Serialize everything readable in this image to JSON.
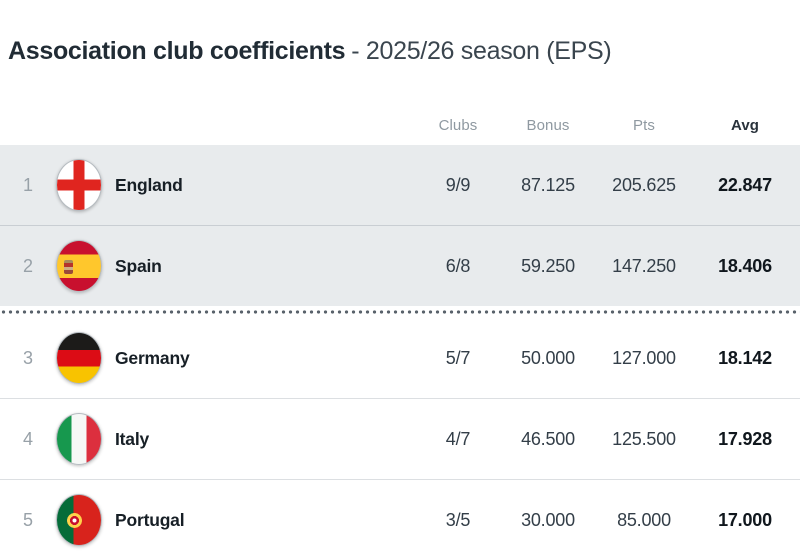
{
  "title": {
    "main": "Association club coefficients",
    "suffix": "- 2025/26 season (EPS)"
  },
  "columns": {
    "clubs": "Clubs",
    "bonus": "Bonus",
    "pts": "Pts",
    "avg": "Avg"
  },
  "rows": [
    {
      "rank": "1",
      "country": "England",
      "flag_icon": "england-flag-icon",
      "clubs": "9/9",
      "bonus": "87.125",
      "pts": "205.625",
      "avg": "22.847",
      "highlighted": true
    },
    {
      "rank": "2",
      "country": "Spain",
      "flag_icon": "spain-flag-icon",
      "clubs": "6/8",
      "bonus": "59.250",
      "pts": "147.250",
      "avg": "18.406",
      "highlighted": true
    },
    {
      "rank": "3",
      "country": "Germany",
      "flag_icon": "germany-flag-icon",
      "clubs": "5/7",
      "bonus": "50.000",
      "pts": "127.000",
      "avg": "18.142",
      "highlighted": false
    },
    {
      "rank": "4",
      "country": "Italy",
      "flag_icon": "italy-flag-icon",
      "clubs": "4/7",
      "bonus": "46.500",
      "pts": "125.500",
      "avg": "17.928",
      "highlighted": false
    },
    {
      "rank": "5",
      "country": "Portugal",
      "flag_icon": "portugal-flag-icon",
      "clubs": "3/5",
      "bonus": "30.000",
      "pts": "85.000",
      "avg": "17.000",
      "highlighted": false
    }
  ],
  "colors": {
    "title_main": "#212c35",
    "title_suffix": "#3a454e",
    "header_text": "#8f99a1",
    "header_avg_text": "#2a333c",
    "highlight_bg": "#e8ebed",
    "highlight_divider": "#c9ced3",
    "plain_divider": "#dcdfe2",
    "dotted": "#59626b",
    "rank_text": "#98a1a8",
    "country_text": "#171f26",
    "value_text": "#333e48",
    "avg_text": "#10171d"
  }
}
